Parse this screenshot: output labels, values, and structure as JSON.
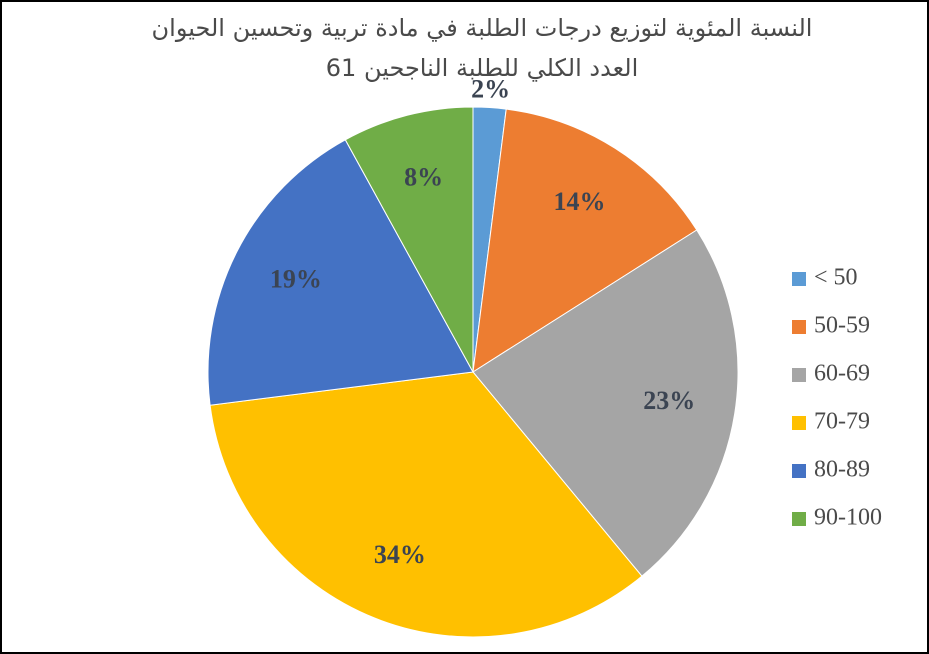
{
  "chart_data": {
    "type": "pie",
    "title": "النسبة المئوية لتوزيع درجات الطلبة في مادة تربية وتحسين الحيوان العدد الكلي للطلبة الناجحين 61",
    "categories": [
      "< 50",
      "50-59",
      "60-69",
      "70-79",
      "80-89",
      "90-100"
    ],
    "values": [
      2,
      14,
      23,
      34,
      19,
      8
    ],
    "value_labels": [
      "2%",
      "14%",
      "23%",
      "34%",
      "19%",
      "8%"
    ],
    "colors": [
      "#5b9bd5",
      "#ed7d31",
      "#a5a5a5",
      "#ffc000",
      "#4472c4",
      "#70ad47"
    ],
    "legend": "right"
  }
}
